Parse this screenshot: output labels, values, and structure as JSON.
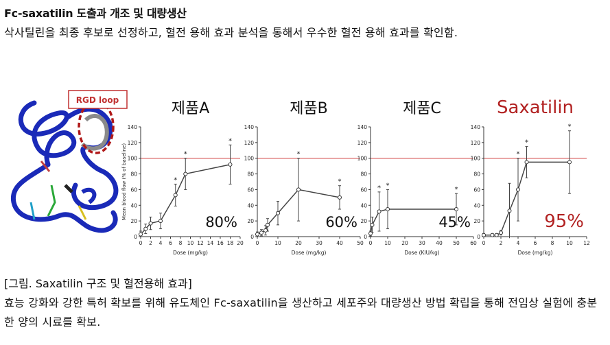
{
  "heading": "Fc-saxatilin 도출과 개조 및 대량생산",
  "para1": "삭사틸린을 최종 후보로 선정하고, 혈전 용해 효과 분석을 통해서 우수한 혈전 용해 효과를 확인함.",
  "structure": {
    "label": "RGD loop"
  },
  "caption": "[그림. Saxatilin 구조 및 혈전용해 효과]",
  "para2": "효능 강화와 강한 특허 확보를 위해 유도체인 Fc-saxatilin을 생산하고 세포주와 대량생산 방법 확립을 통해 전임상 실험에 충분한 양의 시료를 확보.",
  "ylabel": "Mean blood flow (% of baseline)",
  "colors": {
    "title_red": "#b22222",
    "ref_line": "#e08080",
    "protein": "#1a2ab8",
    "loop_circle": "#b01818"
  },
  "chart_data": [
    {
      "type": "line",
      "title": "제품A",
      "xlabel": "Dose (mg/kg)",
      "ylabel": "Mean blood flow (% of baseline)",
      "xlim": [
        0,
        20
      ],
      "ylim": [
        0,
        140
      ],
      "xticks": [
        0,
        2,
        4,
        6,
        8,
        10,
        12,
        14,
        16,
        18,
        20
      ],
      "yticks": [
        0,
        20,
        40,
        60,
        80,
        100,
        120,
        140
      ],
      "reference_line": 100,
      "x": [
        0,
        1,
        2,
        4,
        7,
        9,
        18
      ],
      "y": [
        3,
        10,
        17,
        20,
        53,
        80,
        92
      ],
      "err": [
        4,
        6,
        8,
        10,
        14,
        20,
        25
      ],
      "star_x": [
        7,
        9,
        18
      ],
      "annotation": "80%"
    },
    {
      "type": "line",
      "title": "제품B",
      "xlabel": "Dose (mg/kg)",
      "ylabel": "Mean blood flow (% of baseline)",
      "xlim": [
        0,
        50
      ],
      "ylim": [
        0,
        140
      ],
      "xticks": [
        0,
        10,
        20,
        30,
        40,
        50
      ],
      "yticks": [
        0,
        20,
        40,
        60,
        80,
        100,
        120,
        140
      ],
      "reference_line": 100,
      "x": [
        0,
        2,
        4,
        5,
        10,
        20,
        40
      ],
      "y": [
        3,
        5,
        8,
        15,
        30,
        60,
        50
      ],
      "err": [
        3,
        4,
        6,
        8,
        15,
        40,
        15
      ],
      "star_x": [
        20,
        40
      ],
      "annotation": "60%"
    },
    {
      "type": "line",
      "title": "제품C",
      "xlabel": "Dose (KIU/kg)",
      "ylabel": "Mean blood flow (% of baseline)",
      "xlim": [
        0,
        60
      ],
      "ylim": [
        0,
        140
      ],
      "xticks": [
        0,
        10,
        20,
        30,
        40,
        50,
        60
      ],
      "yticks": [
        0,
        20,
        40,
        60,
        80,
        100,
        120,
        140
      ],
      "reference_line": 100,
      "x": [
        0,
        1,
        5,
        10,
        50
      ],
      "y": [
        4,
        15,
        32,
        35,
        35
      ],
      "err": [
        3,
        10,
        25,
        25,
        20
      ],
      "star_x": [
        5,
        10,
        50
      ],
      "annotation": "45%"
    },
    {
      "type": "line",
      "title": "Saxatilin",
      "xlabel": "Dose (mg/kg)",
      "ylabel": "Mean blood flow (% of baseline)",
      "xlim": [
        0,
        12
      ],
      "ylim": [
        0,
        140
      ],
      "xticks": [
        0,
        2,
        4,
        6,
        8,
        10,
        12
      ],
      "yticks": [
        0,
        20,
        40,
        60,
        80,
        100,
        120,
        140
      ],
      "reference_line": 100,
      "x": [
        0,
        1,
        1.5,
        2,
        3,
        4,
        5,
        10
      ],
      "y": [
        2,
        2,
        2,
        5,
        33,
        60,
        95,
        95
      ],
      "err": [
        2,
        2,
        2,
        3,
        35,
        40,
        20,
        40
      ],
      "star_x": [
        4,
        5,
        10
      ],
      "annotation": "95%",
      "title_color": "red",
      "annotation_color": "red"
    }
  ]
}
